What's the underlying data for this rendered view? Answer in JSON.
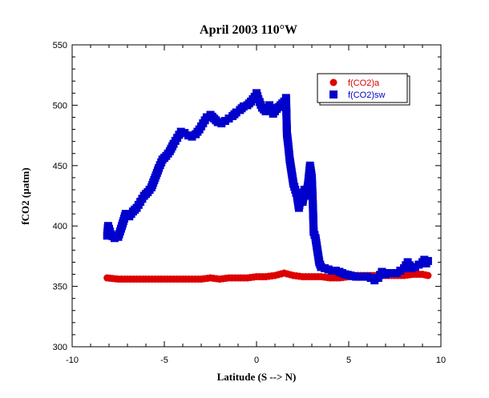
{
  "chart_data": {
    "type": "scatter",
    "title": "April 2003 110°W",
    "xlabel": "Latitude (S --> N)",
    "ylabel": "fCO2 (µatm)",
    "xlim": [
      -10,
      10
    ],
    "ylim": [
      300,
      550
    ],
    "xticks": [
      -10,
      -5,
      0,
      5,
      10
    ],
    "yticks": [
      300,
      350,
      400,
      450,
      500,
      550
    ],
    "grid": false,
    "legend": "top-right",
    "series": [
      {
        "name": "f(CO2)a",
        "marker": "circle",
        "color": "#dd0000",
        "x": [
          -8.1,
          -7.5,
          -7.0,
          -6.5,
          -6.0,
          -5.5,
          -5.0,
          -4.5,
          -4.0,
          -3.5,
          -3.0,
          -2.5,
          -2.0,
          -1.5,
          -1.0,
          -0.5,
          0.0,
          0.5,
          1.0,
          1.5,
          2.0,
          2.5,
          3.0,
          3.5,
          4.0,
          4.5,
          5.0,
          5.5,
          6.0,
          6.5,
          7.0,
          7.5,
          8.0,
          8.5,
          9.0,
          9.3
        ],
        "y": [
          357,
          356,
          356,
          356,
          356,
          356,
          356,
          356,
          356,
          356,
          356,
          357,
          356,
          357,
          357,
          357,
          358,
          358,
          359,
          361,
          359,
          358,
          358,
          358,
          357,
          357,
          358,
          359,
          359,
          359,
          359,
          359,
          359,
          360,
          360,
          359
        ]
      },
      {
        "name": "f(CO2)sw",
        "marker": "square",
        "color": "#0000cc",
        "x": [
          -8.1,
          -8.05,
          -7.9,
          -7.7,
          -7.5,
          -7.3,
          -7.1,
          -6.9,
          -6.7,
          -6.5,
          -6.3,
          -6.1,
          -5.9,
          -5.7,
          -5.5,
          -5.3,
          -5.1,
          -4.9,
          -4.7,
          -4.5,
          -4.3,
          -4.1,
          -3.9,
          -3.7,
          -3.5,
          -3.3,
          -3.1,
          -2.9,
          -2.7,
          -2.5,
          -2.3,
          -2.1,
          -1.9,
          -1.7,
          -1.5,
          -1.3,
          -1.1,
          -0.9,
          -0.7,
          -0.5,
          -0.3,
          -0.1,
          0.0,
          0.1,
          0.3,
          0.5,
          0.7,
          0.9,
          1.1,
          1.3,
          1.5,
          1.6,
          1.65,
          1.7,
          1.8,
          1.9,
          2.0,
          2.1,
          2.2,
          2.3,
          2.4,
          2.5,
          2.6,
          2.7,
          2.8,
          2.9,
          3.0,
          3.05,
          3.1,
          3.2,
          3.3,
          3.4,
          3.5,
          3.7,
          3.9,
          4.1,
          4.3,
          4.5,
          4.8,
          5.1,
          5.4,
          5.7,
          6.0,
          6.2,
          6.4,
          6.6,
          6.8,
          7.0,
          7.2,
          7.4,
          7.6,
          7.8,
          8.0,
          8.2,
          8.4,
          8.6,
          8.8,
          9.0,
          9.1,
          9.2,
          9.3
        ],
        "y": [
          392,
          400,
          393,
          390,
          391,
          400,
          410,
          408,
          412,
          415,
          420,
          425,
          428,
          432,
          440,
          448,
          455,
          458,
          462,
          468,
          473,
          478,
          477,
          475,
          474,
          476,
          480,
          485,
          490,
          492,
          489,
          486,
          485,
          487,
          489,
          491,
          494,
          496,
          499,
          500,
          503,
          507,
          510,
          505,
          498,
          495,
          500,
          493,
          497,
          500,
          503,
          506,
          476,
          470,
          455,
          445,
          435,
          430,
          425,
          415,
          424,
          420,
          430,
          425,
          435,
          450,
          440,
          420,
          395,
          390,
          380,
          370,
          366,
          365,
          364,
          363,
          363,
          362,
          360,
          359,
          358,
          358,
          358,
          357,
          355,
          357,
          362,
          360,
          361,
          361,
          361,
          363,
          365,
          370,
          365,
          366,
          368,
          370,
          372,
          369,
          371
        ]
      }
    ]
  }
}
